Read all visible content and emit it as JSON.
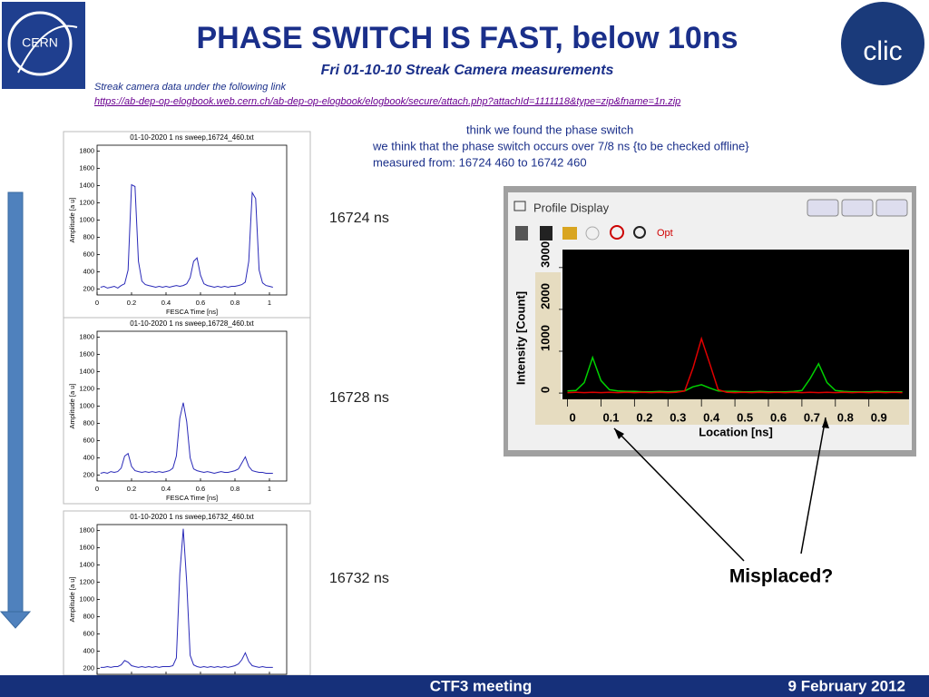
{
  "header": {
    "title": "PHASE SWITCH IS FAST, below 10ns",
    "subtitle": "Fri 01-10-10 Streak Camera measurements",
    "intro": "Streak camera data under the following link",
    "link": "https://ab-dep-op-elogbook.web.cern.ch/ab-dep-op-elogbook/elogbook/secure/attach.php?attachId=1111118&type=zip&fname=1n.zip"
  },
  "logos": {
    "left": "CERN",
    "right": "clic"
  },
  "notes": [
    "think we found the phase switch",
    "we think that the phase switch occurs over 7/8 ns {to be checked offline}",
    "measured from: 16724 460 to 16742 460"
  ],
  "panel_labels": [
    "16724 ns",
    "16728 ns",
    "16732 ns"
  ],
  "window": {
    "title": "Profile Display",
    "toolbar_option": "Opt"
  },
  "annotation": "Misplaced?",
  "footer": {
    "meeting": "CTF3 meeting",
    "date": "9 February 2012"
  },
  "chart_data": [
    {
      "type": "line",
      "title": "01-10-2020 1 ns sweep,16724_460.txt",
      "x_label": "FESCA Time [ns]",
      "y_label": "Amplitude [a u]",
      "color": "#2a2ab8",
      "x": [
        0.02,
        0.04,
        0.06,
        0.08,
        0.1,
        0.12,
        0.14,
        0.16,
        0.18,
        0.2,
        0.22,
        0.24,
        0.26,
        0.28,
        0.3,
        0.32,
        0.34,
        0.36,
        0.38,
        0.4,
        0.42,
        0.44,
        0.46,
        0.48,
        0.5,
        0.52,
        0.54,
        0.56,
        0.58,
        0.6,
        0.62,
        0.64,
        0.66,
        0.68,
        0.7,
        0.72,
        0.74,
        0.76,
        0.78,
        0.8,
        0.82,
        0.84,
        0.86,
        0.88,
        0.9,
        0.92,
        0.94,
        0.96,
        0.98,
        1.0,
        1.02
      ],
      "values": [
        220,
        230,
        210,
        220,
        230,
        210,
        240,
        260,
        420,
        1410,
        1390,
        520,
        290,
        250,
        240,
        230,
        220,
        230,
        220,
        230,
        220,
        230,
        240,
        230,
        240,
        260,
        330,
        520,
        560,
        360,
        260,
        240,
        230,
        220,
        230,
        220,
        230,
        220,
        230,
        230,
        240,
        250,
        280,
        520,
        1320,
        1250,
        420,
        270,
        240,
        230,
        220
      ],
      "xlim": [
        0,
        1.1
      ],
      "ylim": [
        130,
        1870
      ],
      "xticks": [
        0,
        0.2,
        0.4,
        0.6,
        0.8,
        1
      ],
      "yticks": [
        200,
        400,
        600,
        800,
        1000,
        1200,
        1400,
        1600,
        1800
      ]
    },
    {
      "type": "line",
      "title": "01-10-2020 1 ns sweep,16728_460.txt",
      "x_label": "FESCA Time [ns]",
      "y_label": "Amplitude [a u]",
      "color": "#2a2ab8",
      "x": [
        0.02,
        0.04,
        0.06,
        0.08,
        0.1,
        0.12,
        0.14,
        0.16,
        0.18,
        0.2,
        0.22,
        0.24,
        0.26,
        0.28,
        0.3,
        0.32,
        0.34,
        0.36,
        0.38,
        0.4,
        0.42,
        0.44,
        0.46,
        0.48,
        0.5,
        0.52,
        0.54,
        0.56,
        0.58,
        0.6,
        0.62,
        0.64,
        0.66,
        0.68,
        0.7,
        0.72,
        0.74,
        0.76,
        0.78,
        0.8,
        0.82,
        0.84,
        0.86,
        0.88,
        0.9,
        0.92,
        0.94,
        0.96,
        0.98,
        1.0,
        1.02
      ],
      "values": [
        220,
        230,
        220,
        240,
        230,
        240,
        280,
        420,
        450,
        300,
        250,
        240,
        230,
        240,
        230,
        240,
        230,
        240,
        230,
        240,
        250,
        280,
        420,
        860,
        1040,
        820,
        400,
        270,
        250,
        240,
        230,
        240,
        230,
        220,
        230,
        240,
        230,
        230,
        240,
        250,
        270,
        340,
        410,
        300,
        250,
        240,
        230,
        230,
        220,
        220,
        220
      ],
      "xlim": [
        0,
        1.1
      ],
      "ylim": [
        130,
        1870
      ],
      "xticks": [
        0,
        0.2,
        0.4,
        0.6,
        0.8,
        1
      ],
      "yticks": [
        200,
        400,
        600,
        800,
        1000,
        1200,
        1400,
        1600,
        1800
      ]
    },
    {
      "type": "line",
      "title": "01-10-2020 1 ns sweep,16732_460.txt",
      "x_label": "FESCA Time [ns]",
      "y_label": "Amplitude [a u]",
      "color": "#2a2ab8",
      "x": [
        0.02,
        0.04,
        0.06,
        0.08,
        0.1,
        0.12,
        0.14,
        0.16,
        0.18,
        0.2,
        0.22,
        0.24,
        0.26,
        0.28,
        0.3,
        0.32,
        0.34,
        0.36,
        0.38,
        0.4,
        0.42,
        0.44,
        0.46,
        0.48,
        0.5,
        0.52,
        0.54,
        0.56,
        0.58,
        0.6,
        0.62,
        0.64,
        0.66,
        0.68,
        0.7,
        0.72,
        0.74,
        0.76,
        0.78,
        0.8,
        0.82,
        0.84,
        0.86,
        0.88,
        0.9,
        0.92,
        0.94,
        0.96,
        0.98,
        1.0,
        1.02
      ],
      "values": [
        210,
        210,
        220,
        210,
        220,
        220,
        240,
        290,
        270,
        230,
        220,
        210,
        220,
        210,
        220,
        210,
        220,
        210,
        220,
        220,
        220,
        230,
        320,
        1300,
        1820,
        1200,
        350,
        240,
        220,
        210,
        220,
        210,
        220,
        210,
        220,
        210,
        220,
        210,
        220,
        230,
        250,
        300,
        380,
        280,
        230,
        220,
        210,
        220,
        210,
        210,
        210
      ],
      "xlim": [
        0,
        1.1
      ],
      "ylim": [
        130,
        1870
      ],
      "xticks": [
        0,
        0.2,
        0.4,
        0.6,
        0.8,
        1
      ],
      "yticks": [
        200,
        400,
        600,
        800,
        1000,
        1200,
        1400,
        1600,
        1800
      ]
    },
    {
      "type": "line",
      "x_label": "Location [ns]",
      "y_label": "Intensity [Count]",
      "x": [
        0,
        0.025,
        0.05,
        0.075,
        0.1,
        0.125,
        0.15,
        0.175,
        0.2,
        0.225,
        0.25,
        0.275,
        0.3,
        0.325,
        0.35,
        0.375,
        0.4,
        0.425,
        0.45,
        0.475,
        0.5,
        0.525,
        0.55,
        0.575,
        0.6,
        0.625,
        0.65,
        0.675,
        0.7,
        0.725,
        0.75,
        0.775,
        0.8,
        0.825,
        0.85,
        0.875,
        0.9,
        0.925,
        0.95,
        0.975,
        1.0
      ],
      "series": [
        {
          "color": "#00d000",
          "values": [
            50,
            60,
            250,
            850,
            300,
            80,
            50,
            40,
            40,
            30,
            30,
            40,
            30,
            40,
            50,
            150,
            200,
            120,
            50,
            40,
            40,
            30,
            30,
            40,
            30,
            30,
            30,
            40,
            60,
            350,
            700,
            250,
            60,
            40,
            30,
            30,
            30,
            40,
            30,
            30,
            30
          ]
        },
        {
          "color": "#e00000",
          "values": [
            10,
            20,
            10,
            20,
            10,
            20,
            10,
            20,
            10,
            20,
            10,
            20,
            10,
            20,
            50,
            600,
            1300,
            700,
            80,
            20,
            10,
            20,
            10,
            20,
            10,
            20,
            10,
            20,
            10,
            20,
            10,
            20,
            10,
            20,
            10,
            20,
            10,
            20,
            10,
            20,
            10
          ]
        }
      ],
      "xlim": [
        -0.015,
        1.02
      ],
      "ylim": [
        -150,
        3430
      ],
      "xticks": [
        0,
        0.1,
        0.2,
        0.3,
        0.4,
        0.5,
        0.6,
        0.7,
        0.8,
        0.9
      ],
      "yticks": [
        0,
        1000,
        2000,
        3000
      ]
    }
  ]
}
